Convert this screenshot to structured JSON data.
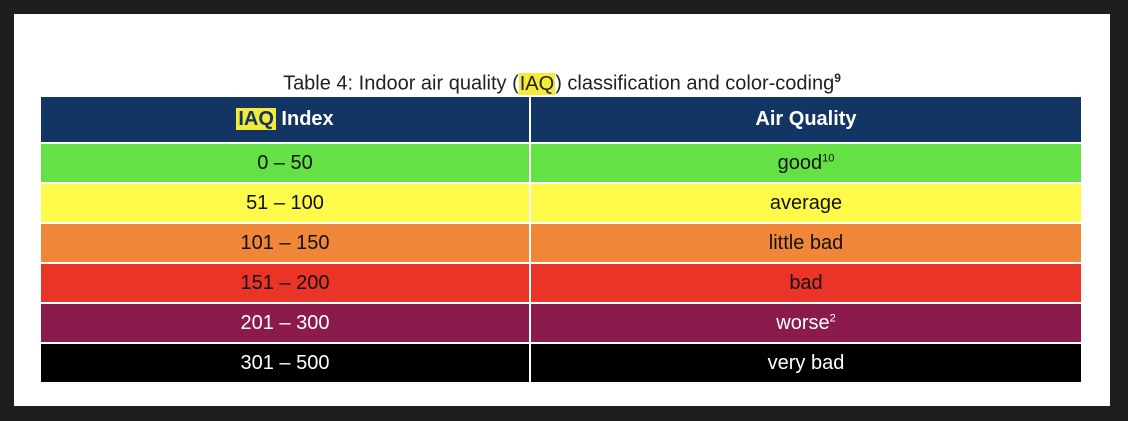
{
  "caption": {
    "prefix": "Table 4: Indoor air quality (",
    "highlight": "IAQ",
    "suffix": ") classification and color-coding",
    "footnote": "9"
  },
  "header": {
    "col1_highlight": "IAQ",
    "col1_rest": " Index",
    "col2": "Air Quality"
  },
  "rows": [
    {
      "range": "0 – 50",
      "quality": "good",
      "sup": "10",
      "bg": "#63e145",
      "fg": "#111111"
    },
    {
      "range": "51 – 100",
      "quality": "average",
      "sup": "",
      "bg": "#fdfa4a",
      "fg": "#111111"
    },
    {
      "range": "101 – 150",
      "quality": "little bad",
      "sup": "",
      "bg": "#f08738",
      "fg": "#111111"
    },
    {
      "range": "151 – 200",
      "quality": "bad",
      "sup": "",
      "bg": "#ea3427",
      "fg": "#111111"
    },
    {
      "range": "201 – 300",
      "quality": "worse",
      "sup": "2",
      "bg": "#8b1b4c",
      "fg": "#ffffff"
    },
    {
      "range": "301 – 500",
      "quality": "very bad",
      "sup": "",
      "bg": "#000000",
      "fg": "#ffffff"
    }
  ]
}
